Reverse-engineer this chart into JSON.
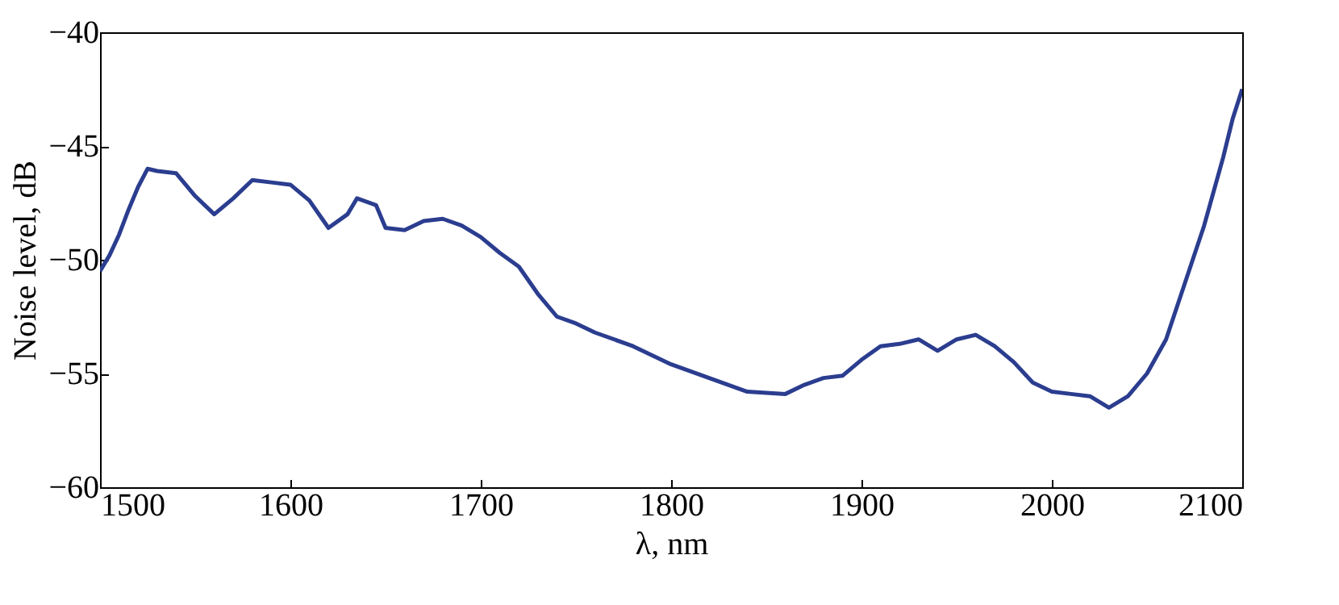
{
  "chart_data": {
    "type": "line",
    "xlabel": "λ, nm",
    "ylabel": "Noise level, dB",
    "x": [
      1500,
      1505,
      1510,
      1515,
      1520,
      1525,
      1530,
      1540,
      1550,
      1560,
      1570,
      1580,
      1590,
      1600,
      1610,
      1620,
      1630,
      1635,
      1645,
      1650,
      1660,
      1670,
      1680,
      1690,
      1700,
      1710,
      1720,
      1730,
      1740,
      1750,
      1760,
      1780,
      1800,
      1820,
      1840,
      1860,
      1870,
      1880,
      1890,
      1900,
      1910,
      1920,
      1930,
      1940,
      1950,
      1960,
      1970,
      1980,
      1990,
      2000,
      2010,
      2020,
      2030,
      2040,
      2050,
      2060,
      2070,
      2080,
      2090,
      2095,
      2100
    ],
    "series": [
      {
        "color": "#2b3d8f",
        "values": [
          -50.5,
          -49.8,
          -48.9,
          -47.8,
          -46.8,
          -46,
          -46.1,
          -46.2,
          -47.2,
          -48,
          -47.3,
          -46.5,
          -46.6,
          -46.7,
          -47.4,
          -48.6,
          -48,
          -47.3,
          -47.6,
          -48.6,
          -48.7,
          -48.3,
          -48.2,
          -48.5,
          -49,
          -49.7,
          -50.3,
          -51.5,
          -52.5,
          -52.8,
          -53.2,
          -53.8,
          -54.6,
          -55.2,
          -55.8,
          -55.9,
          -55.5,
          -55.2,
          -55.1,
          -54.4,
          -53.8,
          -53.7,
          -53.5,
          -54,
          -53.5,
          -53.3,
          -53.8,
          -54.5,
          -55.4,
          -55.8,
          -55.9,
          -56,
          -56.5,
          -56,
          -55,
          -53.5,
          -51,
          -48.5,
          -45.5,
          -43.8,
          -42.5
        ]
      }
    ],
    "xlim": [
      1500,
      2100
    ],
    "xticks": [
      1500,
      1600,
      1700,
      1800,
      1900,
      2000,
      2100
    ],
    "ylim": [
      -60,
      -40
    ],
    "yticks": [
      -60,
      -55,
      -50,
      -45,
      -40
    ],
    "grid": false,
    "legend": false,
    "line_style": "solid"
  }
}
